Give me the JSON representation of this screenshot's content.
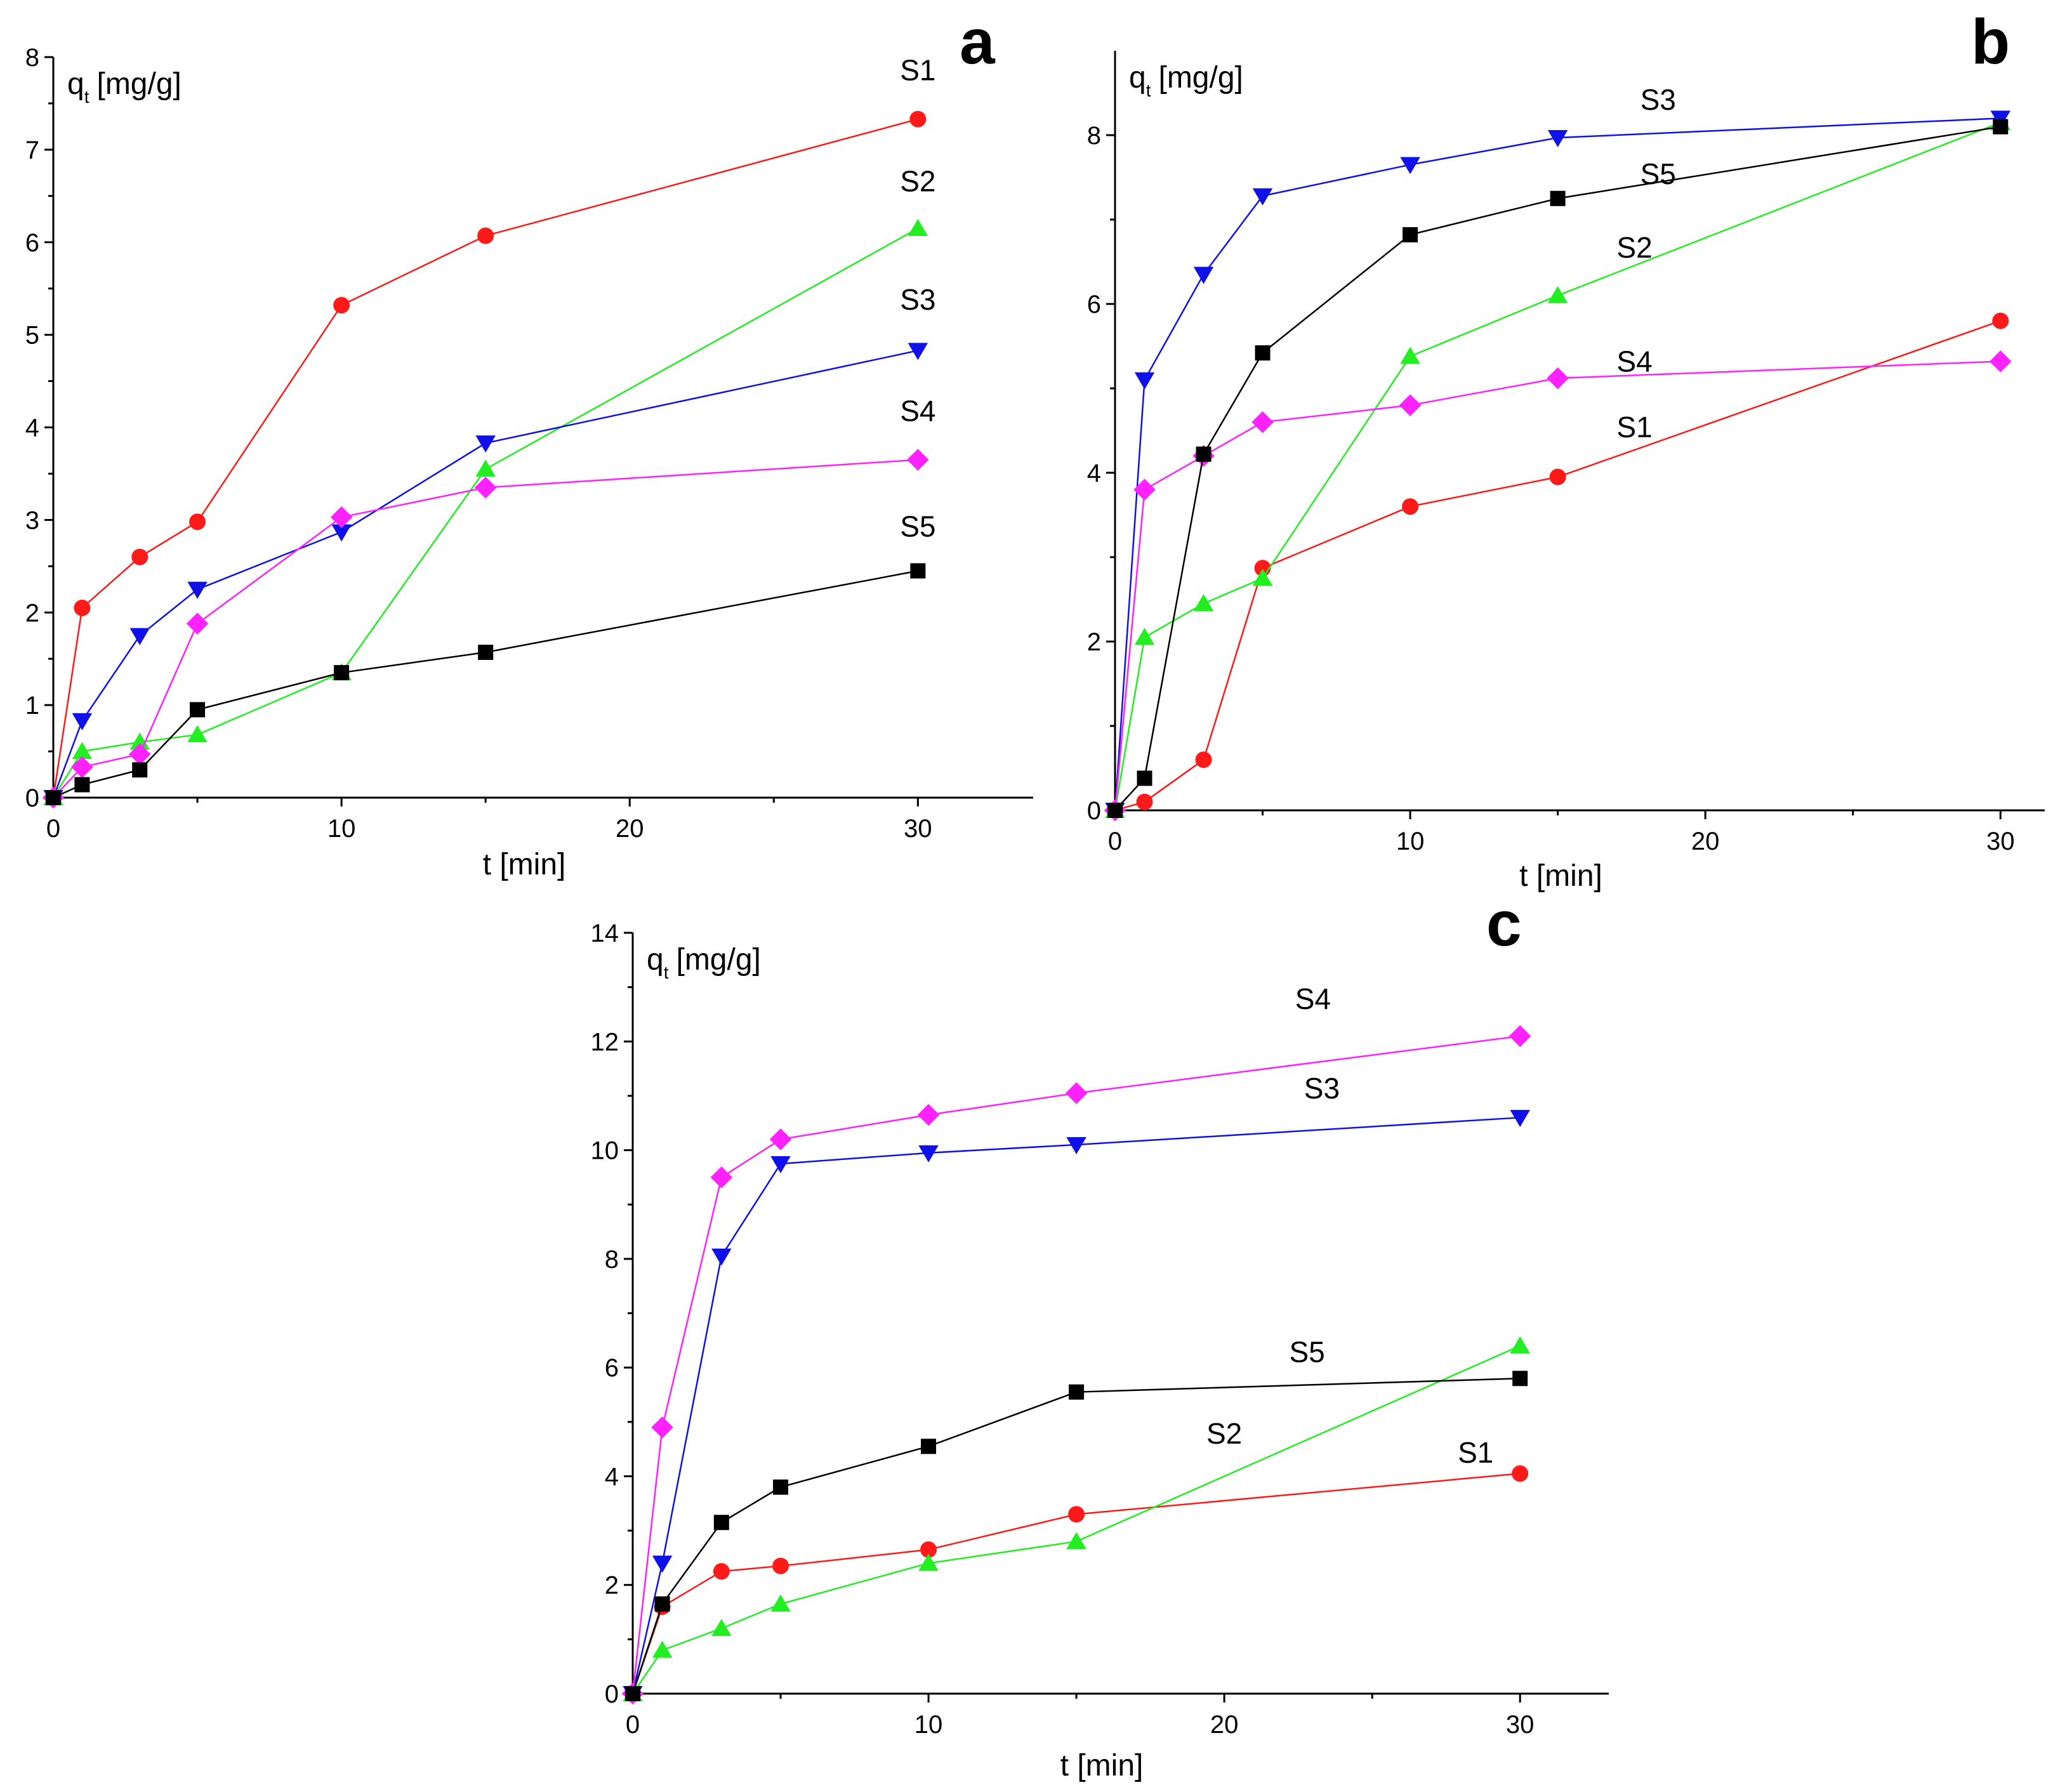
{
  "colors": {
    "S1": "#ff1a1a",
    "S2": "#22ee22",
    "S3": "#1010e8",
    "S4": "#ff22ff",
    "S5": "#000000"
  },
  "markers": {
    "S1": "circle",
    "S2": "triangle-up",
    "S3": "triangle-down",
    "S4": "diamond",
    "S5": "square"
  },
  "chart_data": [
    {
      "panel": "a",
      "type": "line",
      "xlabel": "t [min]",
      "ylabel": "q",
      "ylabel_sub": "t",
      "ylabel_unit": "[mg/g]",
      "xlim": [
        0,
        34
      ],
      "ylim": [
        0,
        8
      ],
      "xticks": [
        0,
        10,
        20,
        30
      ],
      "yticks": [
        0,
        1,
        2,
        3,
        4,
        5,
        6,
        7,
        8
      ],
      "x": [
        0,
        1,
        3,
        5,
        10,
        15,
        30
      ],
      "series": [
        {
          "name": "S1",
          "values": [
            0,
            2.05,
            2.6,
            2.98,
            5.32,
            6.07,
            7.33
          ]
        },
        {
          "name": "S2",
          "values": [
            0,
            0.5,
            0.6,
            0.68,
            1.35,
            3.55,
            6.15
          ]
        },
        {
          "name": "S3",
          "values": [
            0,
            0.83,
            1.75,
            2.25,
            2.87,
            3.83,
            4.83
          ]
        },
        {
          "name": "S4",
          "values": [
            0,
            0.33,
            0.47,
            1.88,
            3.03,
            3.35,
            3.65
          ]
        },
        {
          "name": "S5",
          "values": [
            0,
            0.14,
            0.3,
            0.95,
            1.35,
            1.57,
            2.45
          ]
        }
      ],
      "annotations": [
        {
          "text": "S1",
          "x": 30,
          "y": 7.75
        },
        {
          "text": "S2",
          "x": 30,
          "y": 6.55
        },
        {
          "text": "S3",
          "x": 30,
          "y": 5.27
        },
        {
          "text": "S4",
          "x": 30,
          "y": 4.07
        },
        {
          "text": "S5",
          "x": 30,
          "y": 2.82
        }
      ]
    },
    {
      "panel": "b",
      "type": "line",
      "xlabel": "t [min]",
      "ylabel": "q",
      "ylabel_sub": "t",
      "ylabel_unit": "[mg/g]",
      "xlim": [
        0,
        31.5
      ],
      "ylim": [
        0,
        9
      ],
      "xticks": [
        0,
        10,
        20,
        30
      ],
      "yticks": [
        0,
        2,
        4,
        6,
        8
      ],
      "x": [
        0,
        1,
        3,
        5,
        10,
        15,
        30
      ],
      "series": [
        {
          "name": "S1",
          "values": [
            0,
            0.1,
            0.6,
            2.87,
            3.6,
            3.95,
            5.8
          ]
        },
        {
          "name": "S2",
          "values": [
            0,
            2.05,
            2.45,
            2.75,
            5.38,
            6.1,
            8.15
          ]
        },
        {
          "name": "S3",
          "values": [
            0,
            5.1,
            6.35,
            7.28,
            7.65,
            7.97,
            8.2
          ]
        },
        {
          "name": "S4",
          "values": [
            0,
            3.8,
            4.2,
            4.6,
            4.8,
            5.12,
            5.32
          ]
        },
        {
          "name": "S5",
          "values": [
            0,
            0.38,
            4.22,
            5.42,
            6.82,
            7.25,
            8.1
          ]
        }
      ],
      "annotations": [
        {
          "text": "S3",
          "x": 18.4,
          "y": 8.3
        },
        {
          "text": "S5",
          "x": 18.4,
          "y": 7.42
        },
        {
          "text": "S2",
          "x": 17.6,
          "y": 6.55
        },
        {
          "text": "S4",
          "x": 17.6,
          "y": 5.2
        },
        {
          "text": "S1",
          "x": 17.6,
          "y": 4.42
        }
      ]
    },
    {
      "panel": "c",
      "type": "line",
      "xlabel": "t [min]",
      "ylabel": "q",
      "ylabel_sub": "t",
      "ylabel_unit": "[mg/g]",
      "xlim": [
        0,
        33
      ],
      "ylim": [
        0,
        14
      ],
      "xticks": [
        0,
        10,
        20,
        30
      ],
      "yticks": [
        0,
        2,
        4,
        6,
        8,
        10,
        12,
        14
      ],
      "x": [
        0,
        1,
        3,
        5,
        10,
        15,
        30
      ],
      "series": [
        {
          "name": "S1",
          "values": [
            0,
            1.6,
            2.25,
            2.35,
            2.65,
            3.3,
            4.05
          ]
        },
        {
          "name": "S2",
          "values": [
            0,
            0.8,
            1.2,
            1.65,
            2.4,
            2.8,
            6.4
          ]
        },
        {
          "name": "S3",
          "values": [
            0,
            2.4,
            8.05,
            9.75,
            9.95,
            10.1,
            10.6
          ]
        },
        {
          "name": "S4",
          "values": [
            0,
            4.9,
            9.5,
            10.2,
            10.65,
            11.05,
            12.1
          ]
        },
        {
          "name": "S5",
          "values": [
            0,
            1.65,
            3.15,
            3.8,
            4.55,
            5.55,
            5.8
          ]
        }
      ],
      "annotations": [
        {
          "text": "S4",
          "x": 23,
          "y": 12.6
        },
        {
          "text": "S3",
          "x": 23.3,
          "y": 10.95
        },
        {
          "text": "S5",
          "x": 22.8,
          "y": 6.1
        },
        {
          "text": "S2",
          "x": 20,
          "y": 4.6
        },
        {
          "text": "S1",
          "x": 28.5,
          "y": 4.25
        }
      ]
    }
  ]
}
